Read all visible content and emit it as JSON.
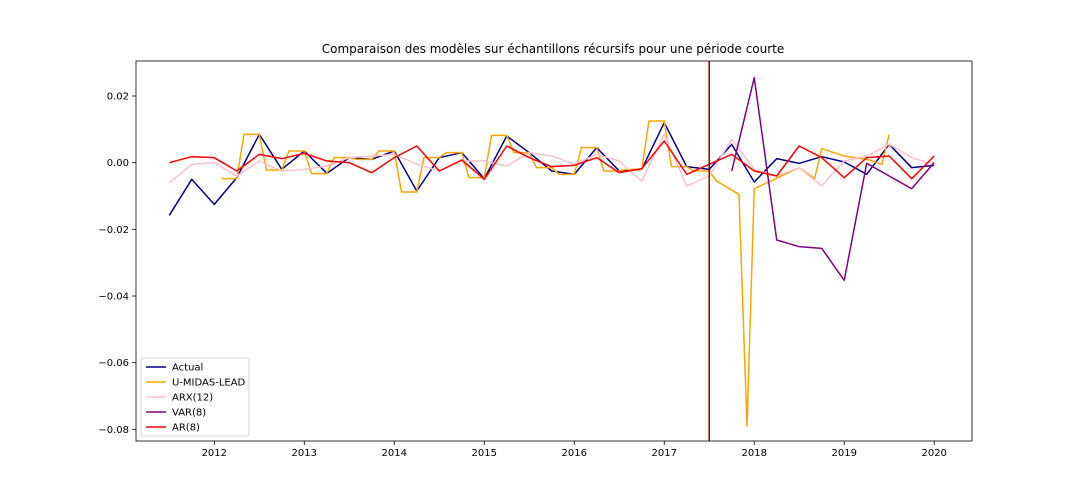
{
  "chart_data": {
    "type": "line",
    "title": "Comparaison des modèles sur échantillons récursifs pour une période courte",
    "xlabel": "",
    "ylabel": "",
    "xlim": [
      2011.13,
      2020.42
    ],
    "ylim": [
      -0.0835,
      0.0305
    ],
    "xticks": [
      2012,
      2013,
      2014,
      2015,
      2016,
      2017,
      2018,
      2019,
      2020
    ],
    "yticks": [
      0.02,
      0.0,
      -0.02,
      -0.04,
      -0.06,
      -0.08
    ],
    "ytick_labels": [
      "0.02",
      "0.00",
      "−0.02",
      "−0.04",
      "−0.06",
      "−0.08"
    ],
    "grid": false,
    "legend_position": "lower-left",
    "vertical_line": {
      "x": 2017.5,
      "color": "#8b0000"
    },
    "series": [
      {
        "name": "Actual",
        "color": "#00008b",
        "x": [
          2011.5,
          2011.75,
          2012.0,
          2012.25,
          2012.5,
          2012.75,
          2013.0,
          2013.25,
          2013.5,
          2013.75,
          2014.0,
          2014.25,
          2014.5,
          2014.75,
          2015.0,
          2015.25,
          2015.5,
          2015.75,
          2016.0,
          2016.25,
          2016.5,
          2016.75,
          2017.0,
          2017.25,
          2017.5,
          2017.75,
          2018.0,
          2018.25,
          2018.5,
          2018.75,
          2019.0,
          2019.25,
          2019.5,
          2019.75,
          2020.0
        ],
        "y": [
          -0.0158,
          -0.005,
          -0.0125,
          -0.0045,
          0.0085,
          -0.002,
          0.0035,
          -0.0032,
          0.0015,
          0.001,
          0.0035,
          -0.0085,
          0.0015,
          0.003,
          -0.0048,
          0.008,
          0.003,
          -0.0025,
          -0.0035,
          0.0045,
          -0.0025,
          -0.002,
          0.012,
          -0.0012,
          -0.002,
          0.0055,
          -0.0058,
          0.0012,
          -0.0002,
          0.0018,
          0.0002,
          -0.0035,
          0.0055,
          -0.0015,
          -0.0008
        ]
      },
      {
        "name": "U-MIDAS-LEAD",
        "color": "#ffa500",
        "x": [
          2012.08,
          2012.25,
          2012.33,
          2012.5,
          2012.58,
          2012.75,
          2012.83,
          2013.0,
          2013.08,
          2013.25,
          2013.33,
          2013.5,
          2013.58,
          2013.75,
          2013.83,
          2014.0,
          2014.08,
          2014.25,
          2014.33,
          2014.5,
          2014.58,
          2014.75,
          2014.83,
          2015.0,
          2015.08,
          2015.25,
          2015.33,
          2015.5,
          2015.58,
          2015.75,
          2015.83,
          2016.0,
          2016.08,
          2016.25,
          2016.33,
          2016.5,
          2016.58,
          2016.75,
          2016.83,
          2017.0,
          2017.08,
          2017.25,
          2017.33,
          2017.5,
          2017.58,
          2017.83,
          2017.92,
          2018.0,
          2018.08,
          2018.5,
          2018.67,
          2018.75,
          2019.0,
          2019.25,
          2019.42,
          2019.5
        ],
        "y": [
          -0.0048,
          -0.0048,
          0.0085,
          0.0085,
          -0.0022,
          -0.0022,
          0.0035,
          0.0035,
          -0.0033,
          -0.0033,
          0.0015,
          0.0015,
          0.001,
          0.001,
          0.0035,
          0.0035,
          -0.0088,
          -0.0088,
          0.0015,
          0.0015,
          0.003,
          0.003,
          -0.0045,
          -0.0045,
          0.0082,
          0.0082,
          0.003,
          0.003,
          -0.0015,
          -0.0015,
          -0.0035,
          -0.0035,
          0.0045,
          0.0045,
          -0.0025,
          -0.0025,
          -0.002,
          -0.002,
          0.0125,
          0.0125,
          -0.0012,
          -0.0012,
          -0.0025,
          -0.0025,
          -0.0055,
          -0.0095,
          -0.079,
          -0.0078,
          -0.0068,
          -0.0015,
          -0.0048,
          0.0042,
          0.002,
          0.001,
          -0.0005,
          0.0085
        ]
      },
      {
        "name": "ARX(12)",
        "color": "#ffc0cb",
        "x": [
          2011.5,
          2011.75,
          2012.0,
          2012.25,
          2012.5,
          2012.75,
          2013.0,
          2013.25,
          2013.5,
          2013.75,
          2014.0,
          2014.25,
          2014.5,
          2014.75,
          2015.0,
          2015.25,
          2015.5,
          2015.75,
          2016.0,
          2016.25,
          2016.5,
          2016.75,
          2017.0,
          2017.25,
          2017.5,
          2017.75,
          2018.0,
          2018.25,
          2018.5,
          2018.75,
          2019.0,
          2019.25,
          2019.5,
          2019.75,
          2020.0
        ],
        "y": [
          -0.006,
          -0.0005,
          0.0,
          -0.004,
          0.0005,
          -0.0025,
          -0.002,
          -0.001,
          0.0015,
          0.002,
          0.0025,
          -0.0005,
          -0.0025,
          0.0005,
          0.0005,
          -0.001,
          0.003,
          0.002,
          -0.0005,
          0.0025,
          0.0005,
          -0.0055,
          0.0085,
          -0.007,
          -0.004,
          0.007,
          -0.002,
          -0.004,
          -0.0015,
          -0.007,
          0.0005,
          0.002,
          0.0055,
          0.0015,
          -0.0005
        ]
      },
      {
        "name": "VAR(8)",
        "color": "#800080",
        "x": [
          2017.75,
          2018.0,
          2018.25,
          2018.5,
          2018.75,
          2019.0,
          2019.25,
          2019.5,
          2019.75,
          2020.0
        ],
        "y": [
          -0.0025,
          0.0255,
          -0.0232,
          -0.0252,
          -0.0257,
          -0.0353,
          -0.0002,
          -0.004,
          -0.0078,
          0.0
        ]
      },
      {
        "name": "AR(8)",
        "color": "#ff0000",
        "x": [
          2011.5,
          2011.75,
          2012.0,
          2012.25,
          2012.5,
          2012.75,
          2013.0,
          2013.25,
          2013.5,
          2013.75,
          2014.0,
          2014.25,
          2014.5,
          2014.75,
          2015.0,
          2015.25,
          2015.5,
          2015.75,
          2016.0,
          2016.25,
          2016.5,
          2016.75,
          2017.0,
          2017.25,
          2017.5,
          2017.75,
          2018.0,
          2018.25,
          2018.5,
          2018.75,
          2019.0,
          2019.25,
          2019.5,
          2019.75,
          2020.0
        ],
        "y": [
          0.0,
          0.0018,
          0.0015,
          -0.0025,
          0.0025,
          0.0012,
          0.0028,
          0.0005,
          0.0,
          -0.003,
          0.0015,
          0.005,
          -0.0025,
          0.0008,
          -0.005,
          0.005,
          0.0015,
          -0.0012,
          -0.0008,
          0.0015,
          -0.003,
          -0.0018,
          0.0065,
          -0.0035,
          -0.0005,
          0.0025,
          -0.0025,
          -0.004,
          0.005,
          0.0015,
          -0.0045,
          0.0015,
          0.002,
          -0.0048,
          0.002
        ]
      }
    ]
  }
}
